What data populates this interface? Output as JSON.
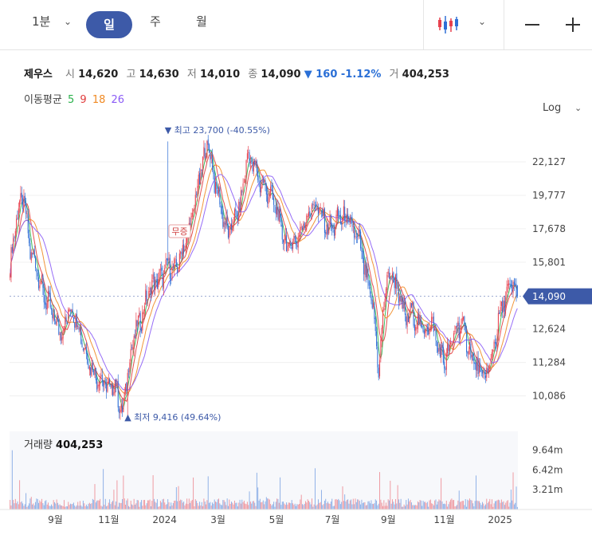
{
  "toolbar": {
    "periods": [
      "1분",
      "일",
      "주",
      "월"
    ],
    "active_period": "일",
    "chart_type_icon": "candlestick-icon",
    "zoom_out_icon": "minus-icon",
    "zoom_in_icon": "plus-icon"
  },
  "quote": {
    "name": "제우스",
    "open_label": "시",
    "open": "14,620",
    "high_label": "고",
    "high": "14,630",
    "low_label": "저",
    "low": "14,010",
    "close_label": "종",
    "close": "14,090",
    "change": "▼ 160 -1.12%",
    "volume_label": "거",
    "volume": "404,253"
  },
  "ma_legend": {
    "label": "이동평균",
    "periods": [
      {
        "text": "5",
        "color": "#2bb24c"
      },
      {
        "text": "9",
        "color": "#e03c3c"
      },
      {
        "text": "18",
        "color": "#f08a24"
      },
      {
        "text": "26",
        "color": "#8b5cf6"
      }
    ]
  },
  "scale_label": "Log",
  "colors": {
    "up": "#e8414e",
    "down": "#2f6fd6",
    "accent": "#3d5aa8"
  },
  "chart_data": {
    "type": "candlestick",
    "price_axis": {
      "scale": "log",
      "ticks": [
        "22,127",
        "19,777",
        "17,678",
        "15,801",
        "12,624",
        "11,284",
        "10,086"
      ],
      "ylim": [
        9100,
        25500
      ]
    },
    "current_price": "14,090",
    "x_ticks": [
      "9월",
      "11월",
      "2024",
      "3월",
      "5월",
      "7월",
      "9월",
      "11월",
      "2025"
    ],
    "annotations": {
      "high": "▼ 최고 23,700 (-40.55%)",
      "low": "▲ 최저 9,416 (49.64%)",
      "event": "무증"
    },
    "closes": [
      15500,
      18500,
      19700,
      16500,
      15600,
      14200,
      13600,
      12800,
      12500,
      13500,
      13200,
      12100,
      11300,
      10800,
      10600,
      10300,
      10500,
      9416,
      11200,
      12500,
      13200,
      14300,
      14800,
      15000,
      15700,
      15300,
      16300,
      17200,
      19200,
      21500,
      23700,
      20800,
      19000,
      17300,
      18200,
      19200,
      22600,
      21800,
      20600,
      20100,
      19400,
      17900,
      16600,
      16900,
      17400,
      18400,
      19200,
      18700,
      17800,
      17700,
      18400,
      18300,
      17600,
      16900,
      15000,
      13700,
      10900,
      14700,
      15200,
      14200,
      13000,
      13400,
      12800,
      12600,
      12900,
      11800,
      11300,
      12000,
      12900,
      12500,
      11500,
      11000,
      10700,
      11300,
      12800,
      13900,
      14600,
      14090
    ],
    "volume": {
      "label": "거래량",
      "value": "404,253",
      "axis_ticks": [
        "9.64m",
        "6.42m",
        "3.21m"
      ],
      "ylim": [
        0,
        11500000
      ]
    }
  }
}
